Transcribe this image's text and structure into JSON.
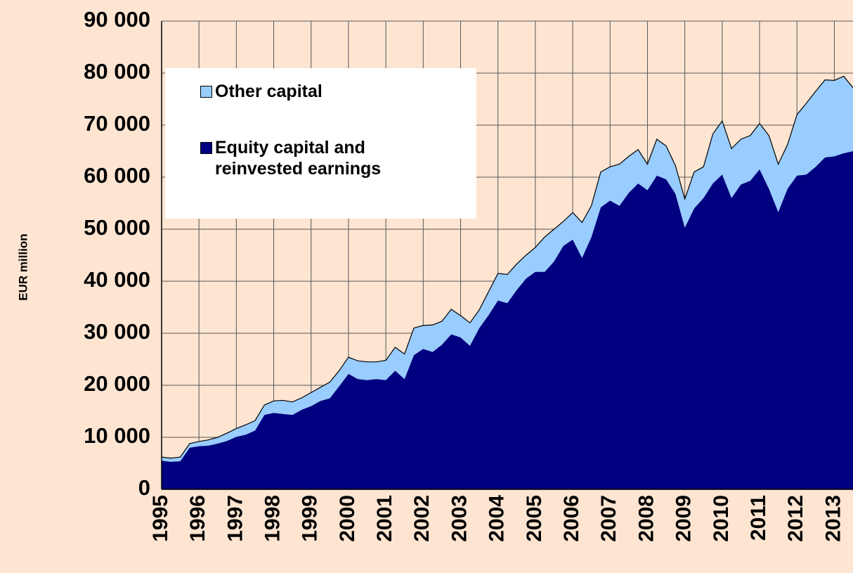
{
  "chart_data": {
    "type": "stacked-area",
    "y_label": "EUR million",
    "x": [
      1995,
      1995.25,
      1995.5,
      1995.75,
      1996,
      1996.25,
      1996.5,
      1996.75,
      1997,
      1997.25,
      1997.5,
      1997.75,
      1998,
      1998.25,
      1998.5,
      1998.75,
      1999,
      1999.25,
      1999.5,
      1999.75,
      2000,
      2000.25,
      2000.5,
      2000.75,
      2001,
      2001.25,
      2001.5,
      2001.75,
      2002,
      2002.25,
      2002.5,
      2002.75,
      2003,
      2003.25,
      2003.5,
      2003.75,
      2004,
      2004.25,
      2004.5,
      2004.75,
      2005,
      2005.25,
      2005.5,
      2005.75,
      2006,
      2006.25,
      2006.5,
      2006.75,
      2007,
      2007.25,
      2007.5,
      2007.75,
      2008,
      2008.25,
      2008.5,
      2008.75,
      2009,
      2009.25,
      2009.5,
      2009.75,
      2010,
      2010.25,
      2010.5,
      2010.75,
      2011,
      2011.25,
      2011.5,
      2011.75,
      2012,
      2012.25,
      2012.5,
      2012.75,
      2013,
      2013.25,
      2013.5
    ],
    "series": [
      {
        "name": "Equity capital and reinvested earnings",
        "color": "#000080",
        "values": [
          5500,
          5300,
          5400,
          8000,
          8300,
          8400,
          8800,
          9300,
          10100,
          10500,
          11300,
          14300,
          14700,
          14500,
          14300,
          15300,
          16000,
          17000,
          17500,
          19800,
          22200,
          21200,
          21000,
          21200,
          21000,
          22800,
          21200,
          25800,
          27000,
          26400,
          27800,
          29800,
          29200,
          27600,
          31000,
          33500,
          36300,
          35800,
          38300,
          40500,
          41800,
          41800,
          43800,
          46800,
          48000,
          44500,
          48500,
          54200,
          55500,
          54500,
          57000,
          58800,
          57500,
          60300,
          59600,
          56800,
          50300,
          54000,
          56000,
          58800,
          60500,
          56000,
          58600,
          59300,
          61500,
          57800,
          53300,
          57800,
          60300,
          60500,
          62000,
          63800,
          64000,
          64600,
          65000
        ]
      },
      {
        "name": "Other capital",
        "color": "#99ccff",
        "values": [
          700,
          700,
          800,
          800,
          900,
          1100,
          1200,
          1500,
          1600,
          1900,
          1900,
          1900,
          2300,
          2600,
          2500,
          2300,
          2600,
          2600,
          3100,
          3000,
          3200,
          3500,
          3500,
          3300,
          3800,
          4500,
          4800,
          5200,
          4500,
          5200,
          4500,
          4800,
          4200,
          4400,
          3500,
          4500,
          5200,
          5500,
          5000,
          4500,
          4700,
          6700,
          6200,
          4700,
          5200,
          6800,
          6000,
          6800,
          6500,
          8000,
          7000,
          6500,
          5000,
          7000,
          6400,
          5400,
          5500,
          7000,
          6000,
          9500,
          10300,
          9500,
          8700,
          8700,
          8800,
          10200,
          9200,
          8500,
          11700,
          13700,
          14500,
          14900,
          14600,
          14800,
          12200
        ]
      }
    ],
    "xlim": [
      1995,
      2013.5
    ],
    "xticks": [
      1995,
      1996,
      1997,
      1998,
      1999,
      2000,
      2001,
      2002,
      2003,
      2004,
      2005,
      2006,
      2007,
      2008,
      2009,
      2010,
      2011,
      2012,
      2013
    ],
    "ylim": [
      0,
      90000
    ],
    "yticks": [
      0,
      {
        "value": 10000,
        "label": "10 000"
      },
      {
        "value": 20000,
        "label": "20 000"
      },
      {
        "value": 30000,
        "label": "30 000"
      },
      {
        "value": 40000,
        "label": "40 000"
      },
      {
        "value": 50000,
        "label": "50 000"
      },
      {
        "value": 60000,
        "label": "60 000"
      },
      {
        "value": 70000,
        "label": "70 000"
      },
      {
        "value": 80000,
        "label": "80 000"
      },
      {
        "value": 90000,
        "label": "90 000"
      }
    ],
    "grid": true,
    "legend_order": [
      1,
      0
    ]
  }
}
